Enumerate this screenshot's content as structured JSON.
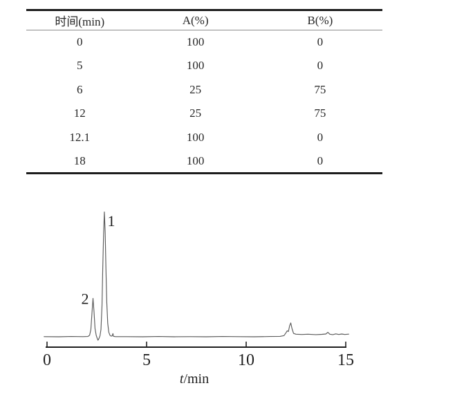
{
  "table": {
    "headers": [
      "时间(min)",
      "A(%)",
      "B(%)"
    ],
    "rows": [
      [
        "0",
        "100",
        "0"
      ],
      [
        "5",
        "100",
        "0"
      ],
      [
        "6",
        "25",
        "75"
      ],
      [
        "12",
        "25",
        "75"
      ],
      [
        "12.1",
        "100",
        "0"
      ],
      [
        "18",
        "100",
        "0"
      ]
    ]
  },
  "chart_data": {
    "type": "line",
    "title": "",
    "xlabel": "t/min",
    "ylabel": "",
    "xlim": [
      0,
      15
    ],
    "x_ticks": [
      0,
      5,
      10,
      15
    ],
    "grid": false,
    "legend": "none",
    "series": [
      {
        "name": "chromatogram-trace",
        "points": [
          [
            -0.15,
            0.4
          ],
          [
            0.6,
            0.3
          ],
          [
            1.2,
            0.5
          ],
          [
            1.8,
            0.4
          ],
          [
            2.05,
            0.5
          ],
          [
            2.14,
            1.5
          ],
          [
            2.2,
            6
          ],
          [
            2.26,
            20
          ],
          [
            2.31,
            31
          ],
          [
            2.36,
            20
          ],
          [
            2.41,
            7
          ],
          [
            2.47,
            1.5
          ],
          [
            2.52,
            -1
          ],
          [
            2.56,
            -2.5
          ],
          [
            2.61,
            -1
          ],
          [
            2.66,
            1
          ],
          [
            2.71,
            6
          ],
          [
            2.76,
            25
          ],
          [
            2.8,
            55
          ],
          [
            2.84,
            82
          ],
          [
            2.88,
            100
          ],
          [
            2.92,
            84
          ],
          [
            2.96,
            55
          ],
          [
            3.0,
            28
          ],
          [
            3.05,
            11
          ],
          [
            3.1,
            4
          ],
          [
            3.16,
            1.5
          ],
          [
            3.22,
            0.8
          ],
          [
            3.27,
            1
          ],
          [
            3.31,
            2.8
          ],
          [
            3.34,
            0.6
          ],
          [
            3.45,
            0.4
          ],
          [
            4.0,
            0.4
          ],
          [
            4.8,
            0.3
          ],
          [
            5.6,
            0.5
          ],
          [
            6.4,
            0.3
          ],
          [
            7.2,
            0.4
          ],
          [
            8.0,
            0.3
          ],
          [
            8.8,
            0.5
          ],
          [
            9.6,
            0.4
          ],
          [
            10.4,
            0.3
          ],
          [
            11.2,
            0.5
          ],
          [
            11.7,
            0.6
          ],
          [
            11.9,
            1.2
          ],
          [
            12.0,
            3.5
          ],
          [
            12.06,
            5
          ],
          [
            12.12,
            4.5
          ],
          [
            12.18,
            9
          ],
          [
            12.24,
            11.3
          ],
          [
            12.3,
            7
          ],
          [
            12.38,
            3
          ],
          [
            12.5,
            2.3
          ],
          [
            12.8,
            2.1
          ],
          [
            13.1,
            2.3
          ],
          [
            13.5,
            2.0
          ],
          [
            13.8,
            2.2
          ],
          [
            14.0,
            2.5
          ],
          [
            14.1,
            3.8
          ],
          [
            14.2,
            2.3
          ],
          [
            14.35,
            2.0
          ],
          [
            14.5,
            2.6
          ],
          [
            14.65,
            2.1
          ],
          [
            14.8,
            2.5
          ],
          [
            14.95,
            2.1
          ],
          [
            15.15,
            2.4
          ]
        ]
      }
    ],
    "peaks": [
      {
        "label": "1",
        "t": 2.88,
        "intensity": 100,
        "label_side": "right"
      },
      {
        "label": "2",
        "t": 2.31,
        "intensity": 31,
        "label_side": "left"
      },
      {
        "label": "",
        "t": 12.24,
        "intensity": 11.3,
        "label_side": "none"
      }
    ]
  },
  "colors": {
    "text": "#262626",
    "rule": "#1c1c1c",
    "header_rule": "#8c8c8c",
    "trace": "#5a5a5a",
    "axis": "#1f1f1f"
  }
}
